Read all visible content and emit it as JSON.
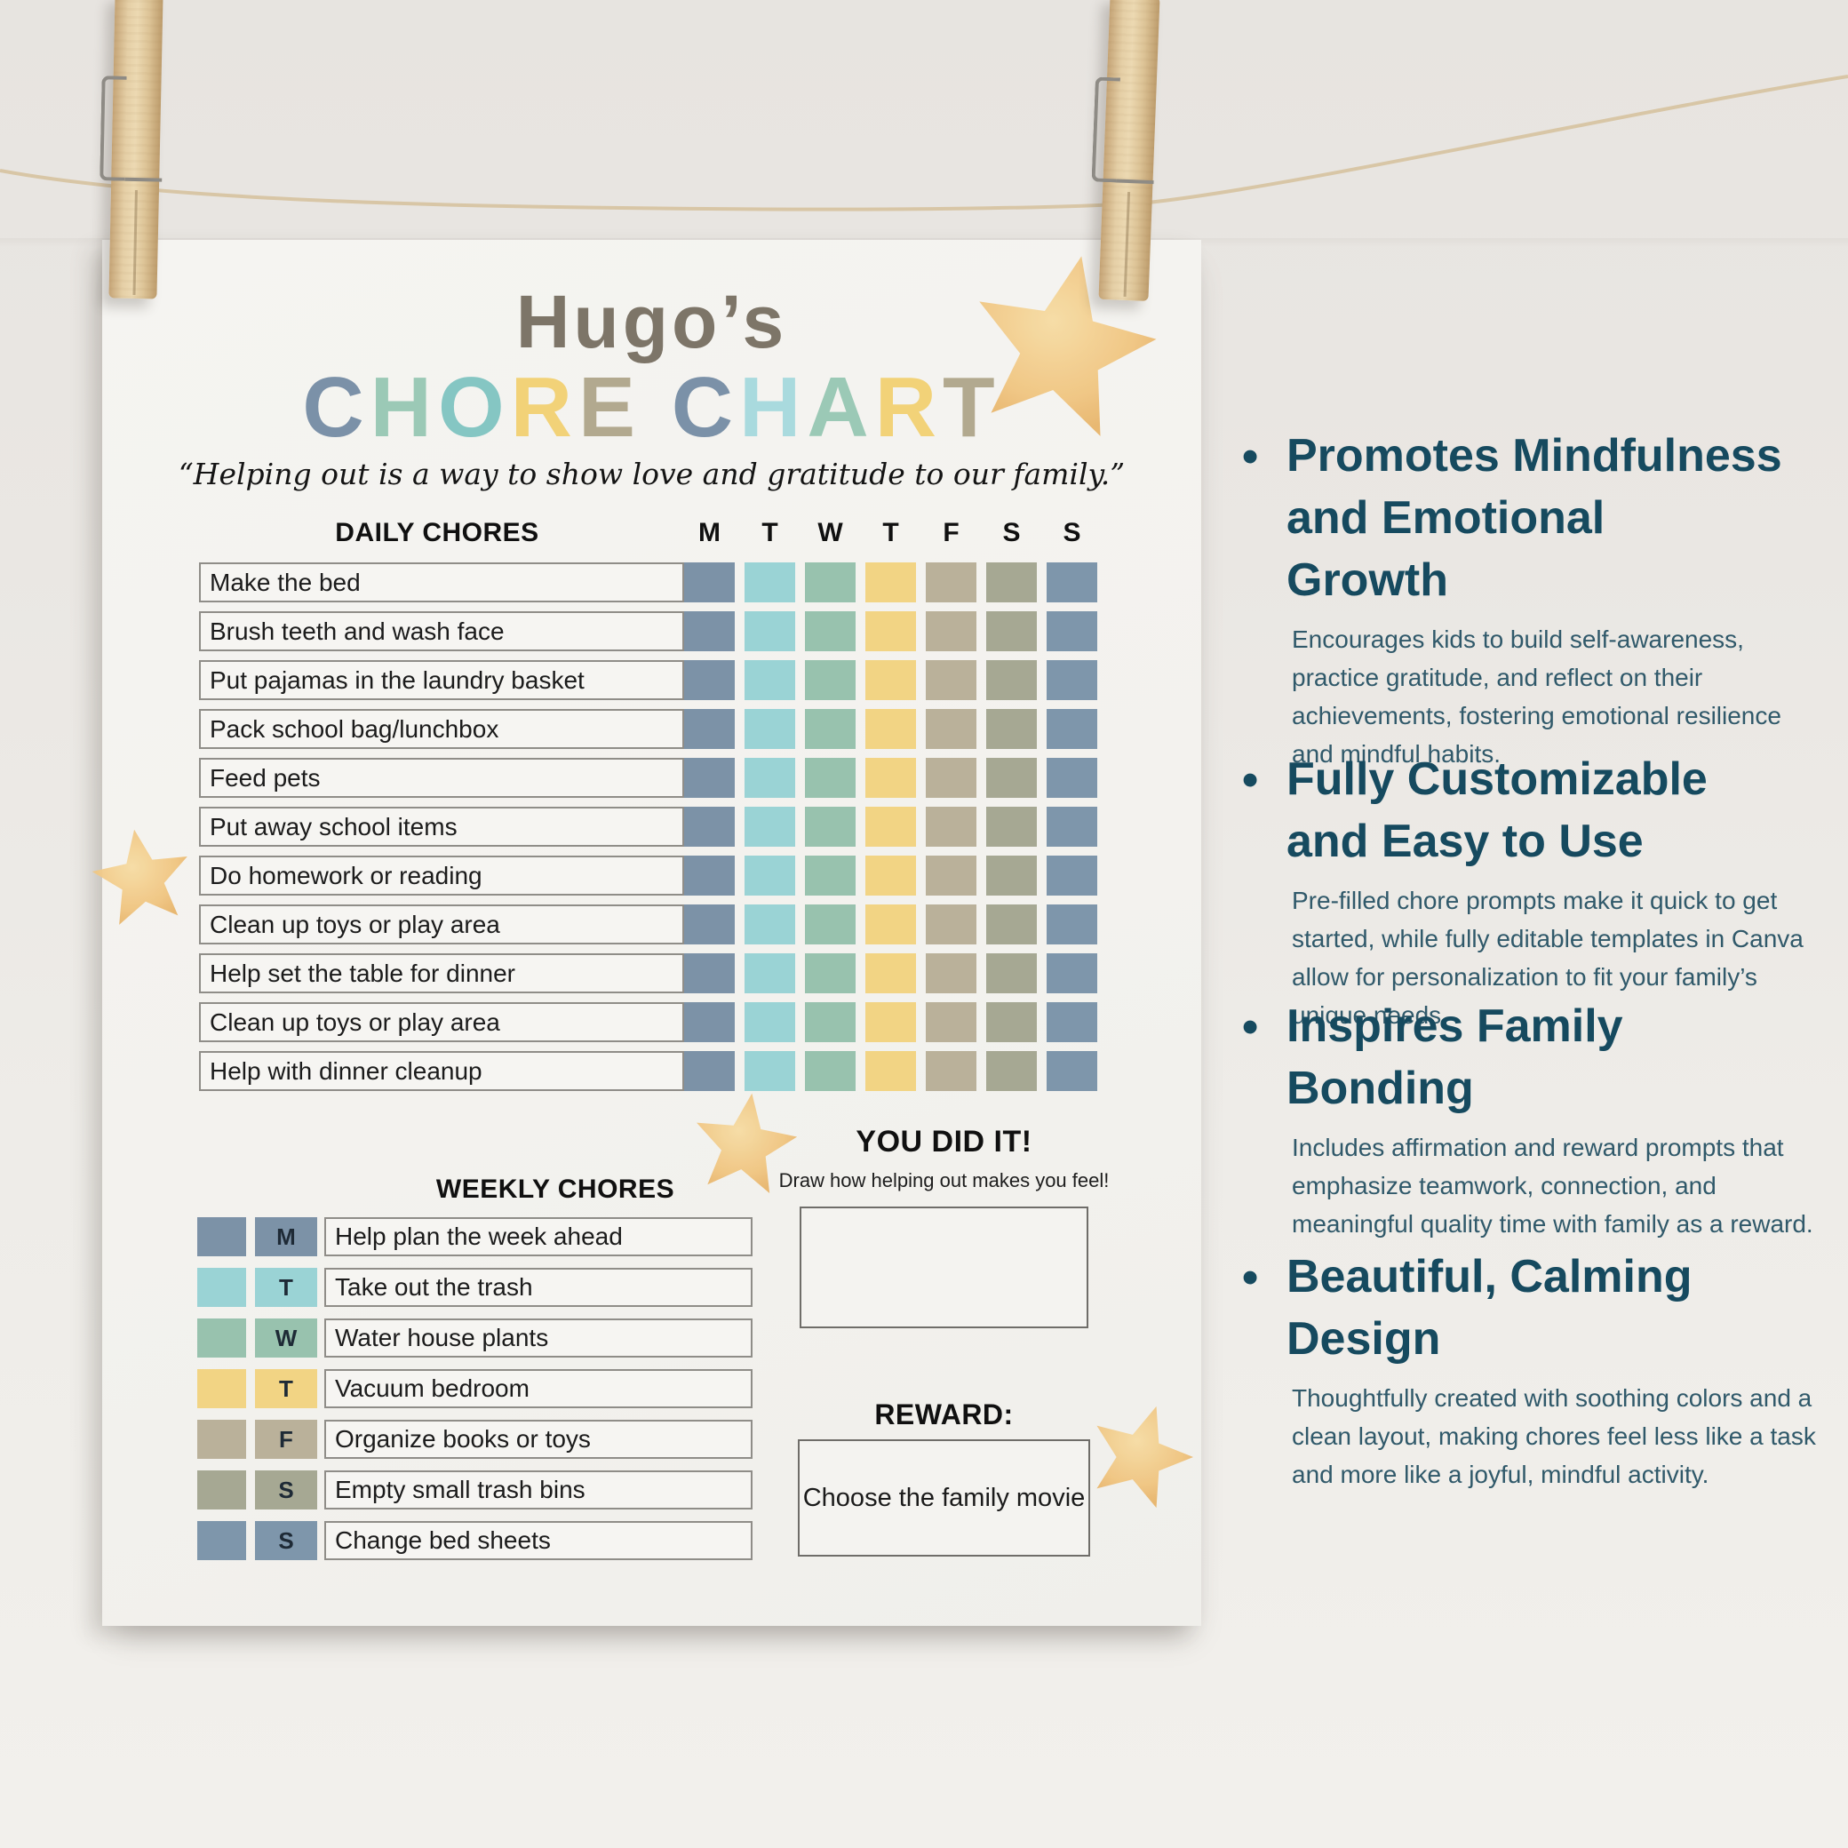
{
  "poster": {
    "title_name": "Hugo’s",
    "title_main": [
      {
        "ch": "C",
        "color": "#7b91a8"
      },
      {
        "ch": "H",
        "color": "#9bc9b6"
      },
      {
        "ch": "O",
        "color": "#85c6c3"
      },
      {
        "ch": "R",
        "color": "#f2d278"
      },
      {
        "ch": "E",
        "color": "#b2a98f"
      },
      {
        "ch": " ",
        "color": "#000000"
      },
      {
        "ch": "C",
        "color": "#7b91a8"
      },
      {
        "ch": "H",
        "color": "#a9dade"
      },
      {
        "ch": "A",
        "color": "#9bc9b6"
      },
      {
        "ch": "R",
        "color": "#f2d278"
      },
      {
        "ch": "T",
        "color": "#b2a98f"
      }
    ],
    "quote": "“Helping out is a way to show love and gratitude to our family.”",
    "daily": {
      "header": "DAILY CHORES",
      "day_letters": [
        "M",
        "T",
        "W",
        "T",
        "F",
        "S",
        "S"
      ],
      "day_colors": [
        "#7c92a7",
        "#9ad3d5",
        "#98c2ae",
        "#f2d484",
        "#bab19a",
        "#a6a893",
        "#7e96ab"
      ],
      "chores": [
        "Make the bed",
        "Brush teeth and wash face",
        "Put pajamas in the laundry basket",
        "Pack school bag/lunchbox",
        "Feed pets",
        "Put away school items",
        "Do homework or reading",
        "Clean up toys or play area",
        "Help set the table for dinner",
        "Clean up toys or play area",
        "Help with dinner cleanup"
      ]
    },
    "weekly": {
      "header": "WEEKLY CHORES",
      "rows": [
        {
          "day": "M",
          "color": "#7c92a7",
          "chore": "Help plan the week ahead"
        },
        {
          "day": "T",
          "color": "#9ad3d5",
          "chore": "Take out the trash"
        },
        {
          "day": "W",
          "color": "#98c2ae",
          "chore": "Water house plants"
        },
        {
          "day": "T",
          "color": "#f2d484",
          "chore": "Vacuum bedroom"
        },
        {
          "day": "F",
          "color": "#bab19a",
          "chore": "Organize books or toys"
        },
        {
          "day": "S",
          "color": "#a6a893",
          "chore": "Empty small trash bins"
        },
        {
          "day": "S",
          "color": "#7e96ab",
          "chore": "Change bed sheets"
        }
      ]
    },
    "you_did_it": {
      "header": "YOU DID IT!",
      "caption": "Draw how helping out makes you feel!"
    },
    "reward": {
      "header": "REWARD:",
      "value": "Choose the family movie"
    }
  },
  "benefits": [
    {
      "heading": "Promotes Mindfulness and Emotional Growth",
      "lines": [
        "Promotes Mindfulness",
        "and Emotional",
        "Growth"
      ],
      "body": "Encourages kids to build self-awareness, practice gratitude, and reflect on their achievements, fostering emotional resilience and mindful habits."
    },
    {
      "heading": "Fully Customizable and Easy to Use",
      "lines": [
        "Fully Customizable",
        "and Easy to Use"
      ],
      "body": "Pre-filled chore prompts make it quick to get started, while fully editable templates in Canva allow for personalization to fit your family’s unique needs."
    },
    {
      "heading": "Inspires Family Bonding",
      "lines": [
        "Inspires Family",
        "Bonding"
      ],
      "body": "Includes affirmation and reward prompts that emphasize teamwork, connection, and meaningful quality time with family as a reward."
    },
    {
      "heading": "Beautiful, Calming Design",
      "lines": [
        "Beautiful, Calming",
        "Design"
      ],
      "body": "Thoughtfully created with soothing colors and a clean layout, making chores feel less like a task and more like a joyful, mindful activity."
    }
  ],
  "colors": {
    "benefit_heading": "#164a5f",
    "benefit_body": "#30596a",
    "title_name_gray": "#7d7568",
    "star_fill": "#efc47e",
    "twine": "#d8c6a6"
  },
  "benefit_tops": [
    478,
    842,
    1120,
    1402
  ]
}
